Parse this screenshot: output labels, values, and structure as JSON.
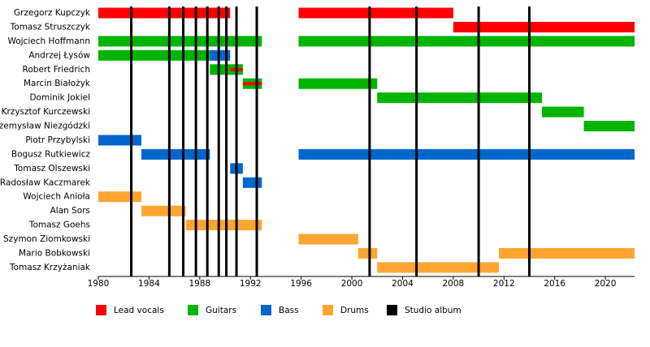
{
  "chart_data": {
    "type": "timeline",
    "categories": [
      "Grzegorz Kupczyk",
      "Tomasz Struszczyk",
      "Wojciech Hoffmann",
      "Andrzej Łysów",
      "Robert Friedrich",
      "Marcin Białożyk",
      "Dominik Jokiel",
      "Krzysztof Kurczewski",
      "Przemysław Niezgódzki",
      "Piotr Przybylski",
      "Bogusz Rutkiewicz",
      "Tomasz Olszewski",
      "Radosław Kaczmarek",
      "Wojciech Anioła",
      "Alan Sors",
      "Tomasz Goehs",
      "Szymon Ziomkowski",
      "Mario Bobkowski",
      "Tomasz Krzyżaniak"
    ],
    "xlim": [
      1980,
      2022.3
    ],
    "xticks": [
      1980,
      1984,
      1988,
      1992,
      1996,
      2000,
      2004,
      2008,
      2012,
      2016,
      2020
    ],
    "series": [
      {
        "name": "Lead vocals",
        "color": "#ff0000",
        "bars": [
          {
            "member": "Grzegorz Kupczyk",
            "start": 1980,
            "end": 1990.4
          },
          {
            "member": "Grzegorz Kupczyk",
            "start": 1995.8,
            "end": 2008.0
          },
          {
            "member": "Tomasz Struszczyk",
            "start": 2008.0,
            "end": 2022.3
          },
          {
            "member": "Robert Friedrich",
            "start": 1990.4,
            "end": 1991.4,
            "style": "stripe"
          },
          {
            "member": "Marcin Białożyk",
            "start": 1991.4,
            "end": 1992.9,
            "style": "stripe"
          }
        ]
      },
      {
        "name": "Guitars",
        "color": "#00b400",
        "bars": [
          {
            "member": "Wojciech Hoffmann",
            "start": 1980,
            "end": 1992.9
          },
          {
            "member": "Wojciech Hoffmann",
            "start": 1995.8,
            "end": 2022.3
          },
          {
            "member": "Andrzej Łysów",
            "start": 1980,
            "end": 1988.8
          },
          {
            "member": "Robert Friedrich",
            "start": 1988.8,
            "end": 1991.4
          },
          {
            "member": "Marcin Białożyk",
            "start": 1991.4,
            "end": 1992.9
          },
          {
            "member": "Marcin Białożyk",
            "start": 1995.8,
            "end": 2002.0
          },
          {
            "member": "Dominik Jokiel",
            "start": 2002.0,
            "end": 2015.0
          },
          {
            "member": "Krzysztof Kurczewski",
            "start": 2015.0,
            "end": 2018.3
          },
          {
            "member": "Przemysław Niezgódzki",
            "start": 2018.3,
            "end": 2022.3
          }
        ]
      },
      {
        "name": "Bass",
        "color": "#0066cc",
        "bars": [
          {
            "member": "Andrzej Łysów",
            "start": 1988.8,
            "end": 1990.4
          },
          {
            "member": "Piotr Przybylski",
            "start": 1980,
            "end": 1983.4
          },
          {
            "member": "Bogusz Rutkiewicz",
            "start": 1983.4,
            "end": 1988.8
          },
          {
            "member": "Bogusz Rutkiewicz",
            "start": 1995.8,
            "end": 2022.3
          },
          {
            "member": "Tomasz Olszewski",
            "start": 1990.4,
            "end": 1991.4
          },
          {
            "member": "Radosław Kaczmarek",
            "start": 1991.4,
            "end": 1992.9
          }
        ]
      },
      {
        "name": "Drums",
        "color": "#ffa531",
        "bars": [
          {
            "member": "Wojciech Anioła",
            "start": 1980,
            "end": 1983.4
          },
          {
            "member": "Alan Sors",
            "start": 1983.4,
            "end": 1986.9
          },
          {
            "member": "Tomasz Goehs",
            "start": 1986.9,
            "end": 1992.9
          },
          {
            "member": "Szymon Ziomkowski",
            "start": 1995.8,
            "end": 2000.5
          },
          {
            "member": "Mario Bobkowski",
            "start": 2000.5,
            "end": 2002.0
          },
          {
            "member": "Mario Bobkowski",
            "start": 2011.6,
            "end": 2022.3
          },
          {
            "member": "Tomasz Krzyżaniak",
            "start": 2002.0,
            "end": 2011.6
          }
        ]
      },
      {
        "name": "Studio album",
        "color": "#000000",
        "lines": [
          1982.6,
          1985.6,
          1986.7,
          1987.7,
          1988.6,
          1989.5,
          1990.1,
          1990.9,
          1992.5,
          2001.4,
          2005.1,
          2010.0,
          2014.0
        ]
      }
    ]
  }
}
